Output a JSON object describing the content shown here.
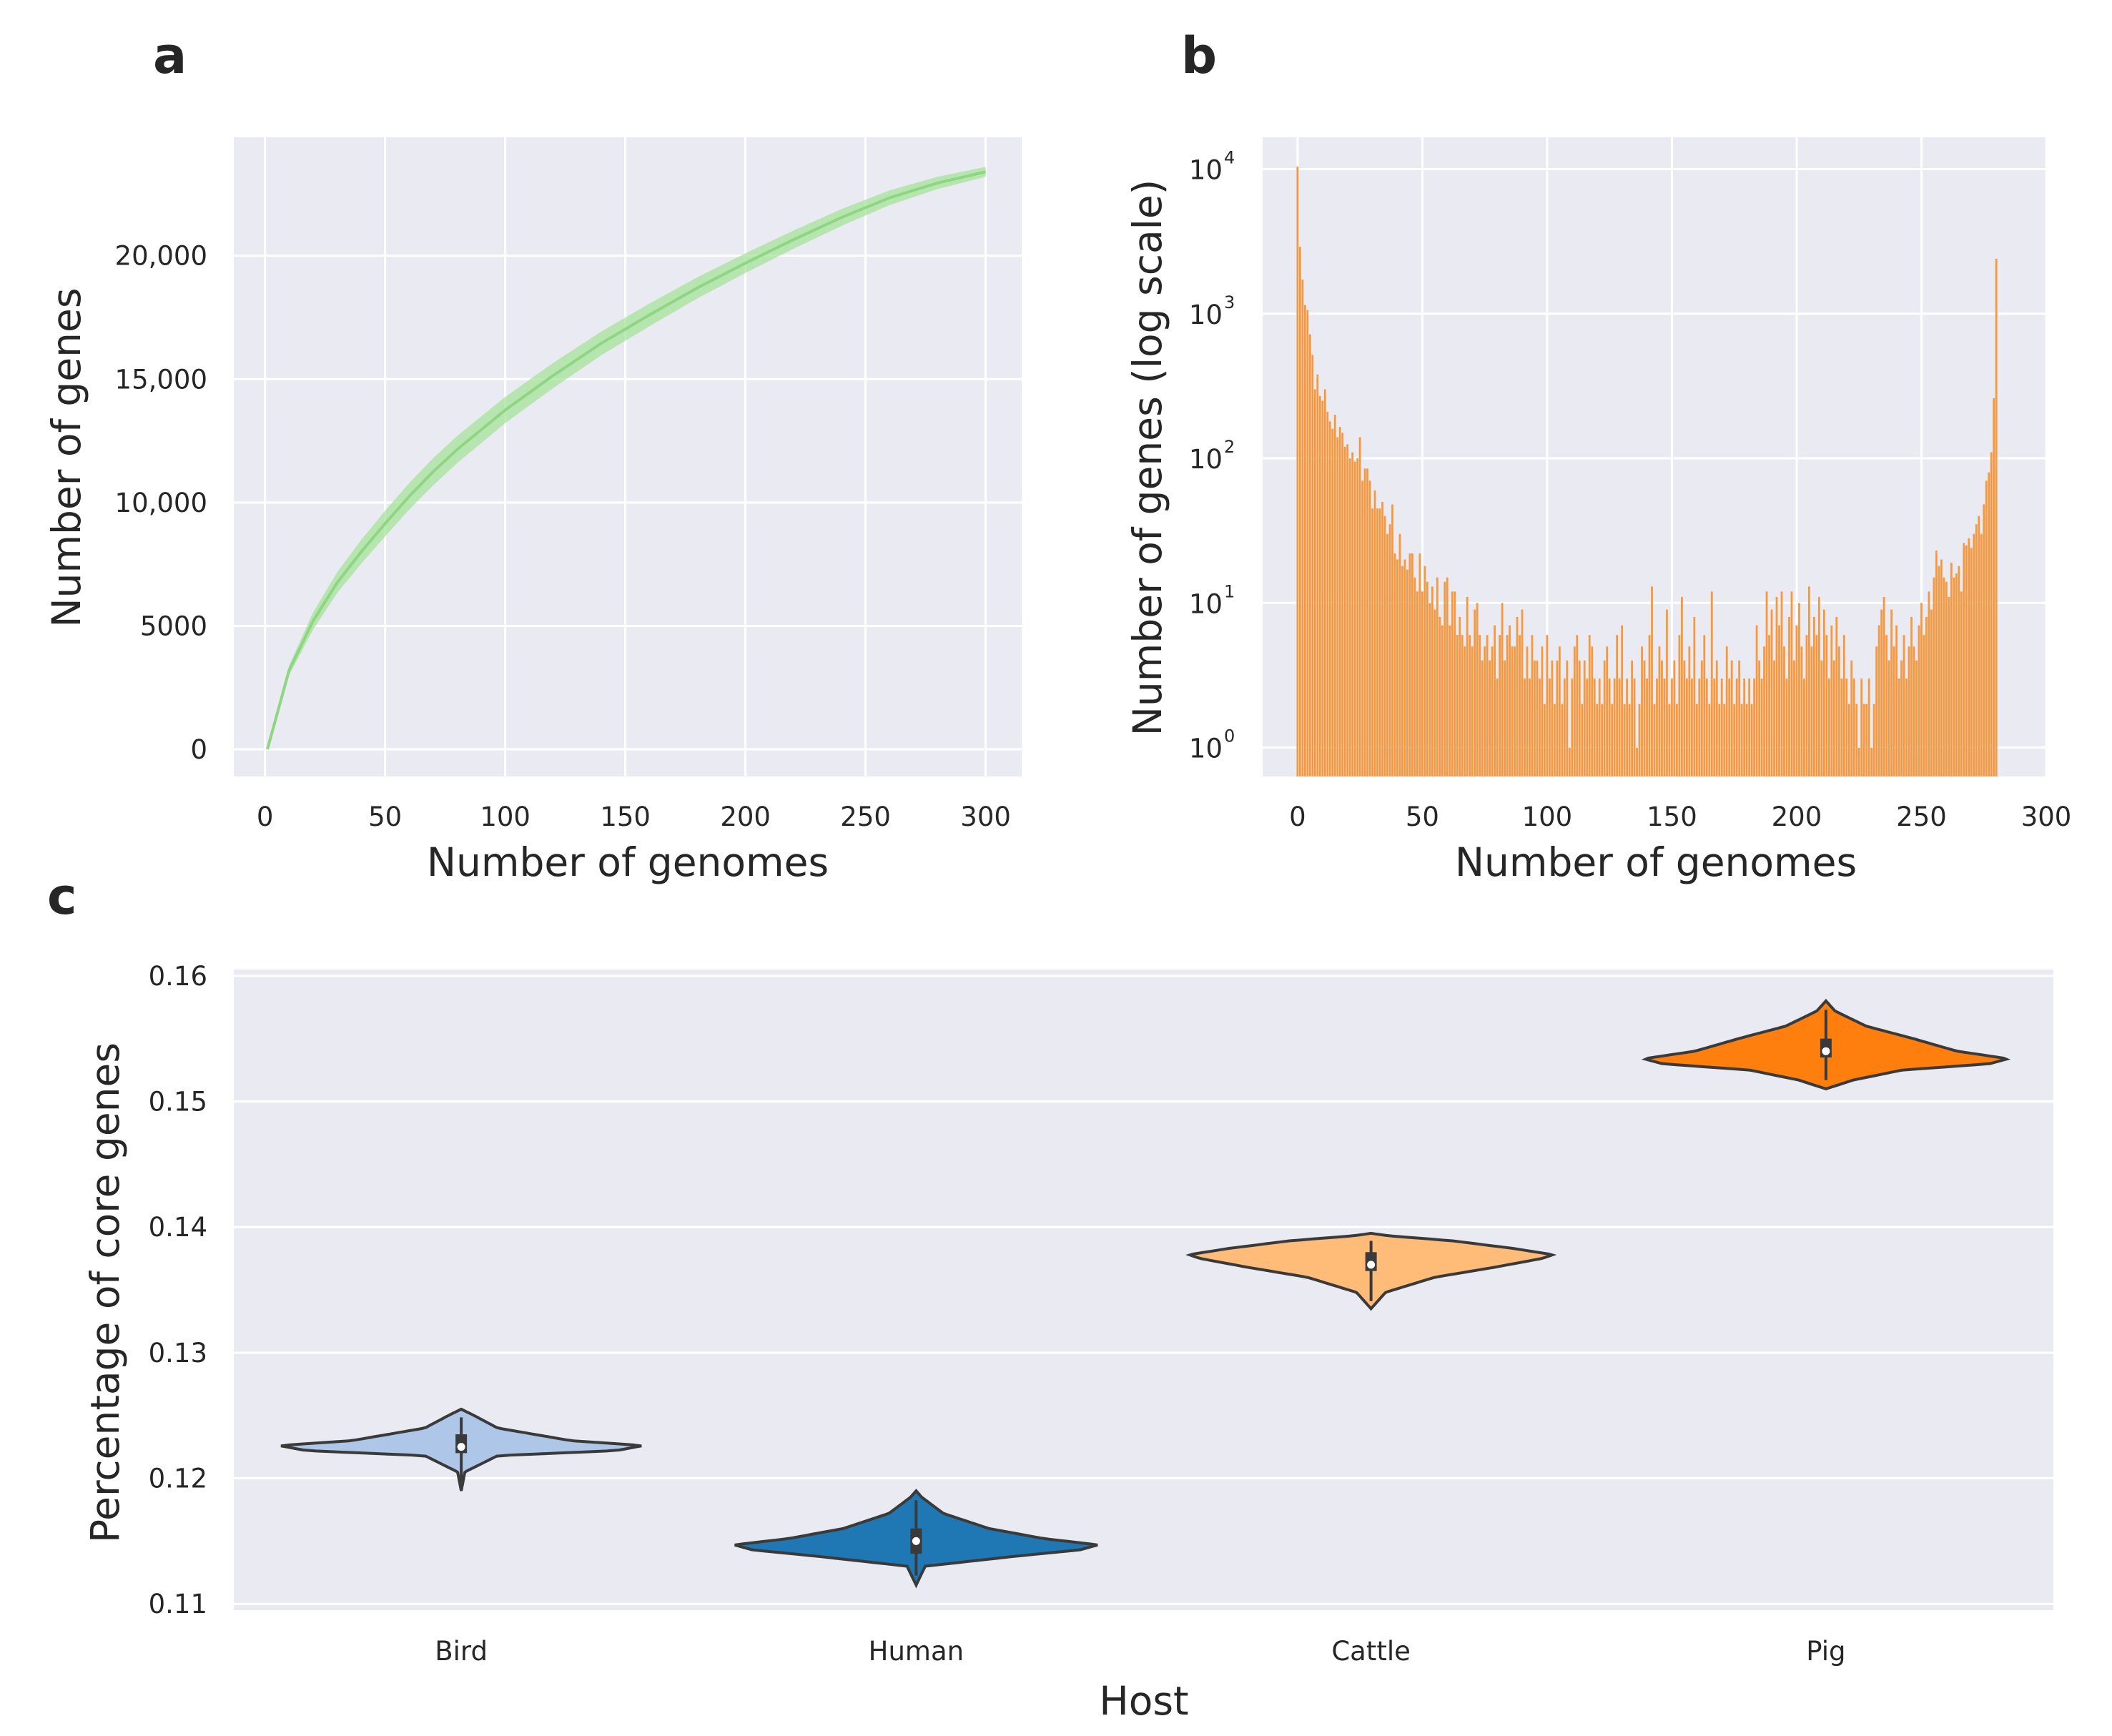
{
  "panel_labels": [
    "a",
    "b",
    "c"
  ],
  "colors": {
    "panel_bg": "#eaeaf2",
    "grid": "#ffffff",
    "curve": "#8fd682",
    "curve_band": "#a6e39a",
    "hist": "#f7983f",
    "violin_edge": "#3a3a3a",
    "violin_bird": "#aec7e8",
    "violin_human": "#1f77b4",
    "violin_cattle": "#ffbb78",
    "violin_pig": "#ff7f0e"
  },
  "chart_data": [
    {
      "panel": "a",
      "type": "line",
      "title": "",
      "xlabel": "Number of genomes",
      "ylabel": "Number of genes",
      "xlim": [
        -13,
        315
      ],
      "ylim": [
        -1100,
        24800
      ],
      "xticks": [
        0,
        50,
        100,
        150,
        200,
        250,
        300
      ],
      "xtick_labels": [
        "0",
        "50",
        "100",
        "150",
        "200",
        "250",
        "300"
      ],
      "yticks": [
        0,
        5000,
        10000,
        15000,
        20000
      ],
      "ytick_labels": [
        "0",
        "5000",
        "10,000",
        "15,000",
        "20,000"
      ],
      "x": [
        1,
        10,
        20,
        30,
        40,
        50,
        60,
        70,
        80,
        90,
        100,
        120,
        140,
        160,
        180,
        200,
        220,
        240,
        260,
        280,
        300
      ],
      "y": [
        0,
        3200,
        5200,
        6750,
        8000,
        9150,
        10250,
        11250,
        12150,
        12950,
        13750,
        15150,
        16450,
        17600,
        18700,
        19700,
        20650,
        21550,
        22350,
        22950,
        23400
      ],
      "band_halfwidth": [
        0,
        200,
        350,
        420,
        480,
        520,
        540,
        550,
        550,
        540,
        530,
        510,
        480,
        460,
        430,
        400,
        370,
        340,
        300,
        250,
        200
      ],
      "grid": true,
      "legend": "none"
    },
    {
      "panel": "b",
      "type": "bar",
      "title": "",
      "xlabel": "Number of genomes",
      "ylabel": "Number of genes (log scale)",
      "log_y": true,
      "ylim_log10": [
        -0.2,
        4.22
      ],
      "xlim": [
        -14,
        300
      ],
      "xticks": [
        0,
        50,
        100,
        150,
        200,
        250,
        300
      ],
      "xtick_labels": [
        "0",
        "50",
        "100",
        "150",
        "200",
        "250",
        "300"
      ],
      "yticks_log10": [
        0,
        1,
        2,
        3,
        4
      ],
      "ytick_bases": [
        "10",
        "10",
        "10",
        "10",
        "10"
      ],
      "ytick_exponents": [
        "0",
        "1",
        "2",
        "3",
        "4"
      ],
      "bar_width": 0.8,
      "counts": [
        10400,
        2900,
        1720,
        1150,
        1060,
        720,
        520,
        300,
        380,
        270,
        250,
        300,
        210,
        180,
        160,
        200,
        140,
        165,
        150,
        120,
        125,
        100,
        110,
        95,
        100,
        140,
        70,
        85,
        85,
        70,
        45,
        60,
        45,
        45,
        50,
        40,
        30,
        35,
        48,
        22,
        20,
        30,
        18,
        20,
        17,
        22,
        22,
        15,
        12,
        22,
        12,
        18,
        14,
        10,
        13,
        9,
        15,
        8,
        7,
        14,
        15,
        7,
        12,
        12,
        6,
        8,
        6,
        5,
        11,
        6,
        5,
        9,
        10,
        6,
        4,
        5,
        6,
        4,
        5,
        7,
        3,
        6,
        10,
        4,
        6,
        7,
        5,
        5,
        8,
        6,
        9,
        3,
        5,
        3,
        6,
        4,
        4,
        3,
        5,
        2,
        6,
        3,
        4,
        2,
        4,
        5,
        2,
        3,
        4,
        1,
        3,
        5,
        6,
        4,
        2,
        4,
        3,
        6,
        5,
        3,
        2,
        3,
        2,
        4,
        5,
        3,
        2,
        3,
        6,
        3,
        7,
        2,
        3,
        2,
        4,
        3,
        1,
        2,
        5,
        4,
        3,
        6,
        13,
        2,
        3,
        5,
        4,
        3,
        9,
        2,
        3,
        4,
        2,
        6,
        11,
        4,
        3,
        5,
        3,
        8,
        2,
        3,
        4,
        6,
        3,
        2,
        12,
        3,
        4,
        2,
        3,
        2,
        5,
        3,
        4,
        2,
        3,
        4,
        2,
        3,
        2,
        3,
        2,
        3,
        7,
        4,
        3,
        5,
        12,
        6,
        9,
        4,
        11,
        7,
        12,
        5,
        3,
        8,
        12,
        4,
        7,
        10,
        5,
        3,
        6,
        13,
        5,
        8,
        6,
        11,
        4,
        9,
        6,
        3,
        7,
        4,
        8,
        5,
        3,
        6,
        3,
        2,
        4,
        3,
        2,
        1,
        3,
        2,
        2,
        3,
        1,
        2,
        5,
        7,
        9,
        11,
        6,
        4,
        9,
        5,
        7,
        3,
        4,
        6,
        3,
        5,
        8,
        5,
        4,
        7,
        10,
        6,
        8,
        12,
        9,
        15,
        23,
        18,
        20,
        15,
        14,
        11,
        19,
        15,
        16,
        18,
        12,
        26,
        25,
        28,
        24,
        30,
        35,
        40,
        30,
        48,
        70,
        80,
        110,
        260,
        2400
      ],
      "grid": true,
      "legend": "none"
    },
    {
      "panel": "c",
      "type": "violin",
      "title": "",
      "xlabel": "Host",
      "ylabel": "Percentage of core genes",
      "ylim": [
        0.1095,
        0.1605
      ],
      "yticks": [
        0.11,
        0.12,
        0.13,
        0.14,
        0.15,
        0.16
      ],
      "ytick_labels": [
        "0.11",
        "0.12",
        "0.13",
        "0.14",
        "0.15",
        "0.16"
      ],
      "categories": [
        "Bird",
        "Human",
        "Cattle",
        "Pig"
      ],
      "violins": [
        {
          "name": "Bird",
          "min": 0.119,
          "q1": 0.122,
          "median": 0.1225,
          "q3": 0.1235,
          "max": 0.1255,
          "profile_y": [
            0.119,
            0.1205,
            0.1218,
            0.1222,
            0.1226,
            0.123,
            0.124,
            0.125,
            0.1255
          ],
          "profile_w": [
            0,
            0.02,
            0.2,
            0.85,
            1.0,
            0.6,
            0.2,
            0.07,
            0
          ]
        },
        {
          "name": "Human",
          "min": 0.1115,
          "q1": 0.114,
          "median": 0.115,
          "q3": 0.116,
          "max": 0.119,
          "profile_y": [
            0.1115,
            0.113,
            0.1138,
            0.1143,
            0.1147,
            0.1152,
            0.116,
            0.1172,
            0.1185,
            0.119
          ],
          "profile_w": [
            0,
            0.05,
            0.55,
            0.9,
            1.0,
            0.7,
            0.4,
            0.15,
            0.03,
            0
          ]
        },
        {
          "name": "Cattle",
          "min": 0.1335,
          "q1": 0.1365,
          "median": 0.137,
          "q3": 0.138,
          "max": 0.1395,
          "profile_y": [
            0.1335,
            0.1348,
            0.136,
            0.1368,
            0.1375,
            0.1378,
            0.1383,
            0.1389,
            0.1393,
            0.1395
          ],
          "profile_w": [
            0,
            0.08,
            0.35,
            0.68,
            0.94,
            1.0,
            0.78,
            0.45,
            0.1,
            0
          ]
        },
        {
          "name": "Pig",
          "min": 0.151,
          "q1": 0.1535,
          "median": 0.154,
          "q3": 0.155,
          "max": 0.158,
          "profile_y": [
            0.151,
            0.1517,
            0.1525,
            0.153,
            0.1534,
            0.154,
            0.155,
            0.156,
            0.1572,
            0.158
          ],
          "profile_w": [
            0,
            0.15,
            0.42,
            0.9,
            1.0,
            0.72,
            0.48,
            0.22,
            0.05,
            0
          ]
        }
      ],
      "grid": true,
      "legend": "none"
    }
  ]
}
